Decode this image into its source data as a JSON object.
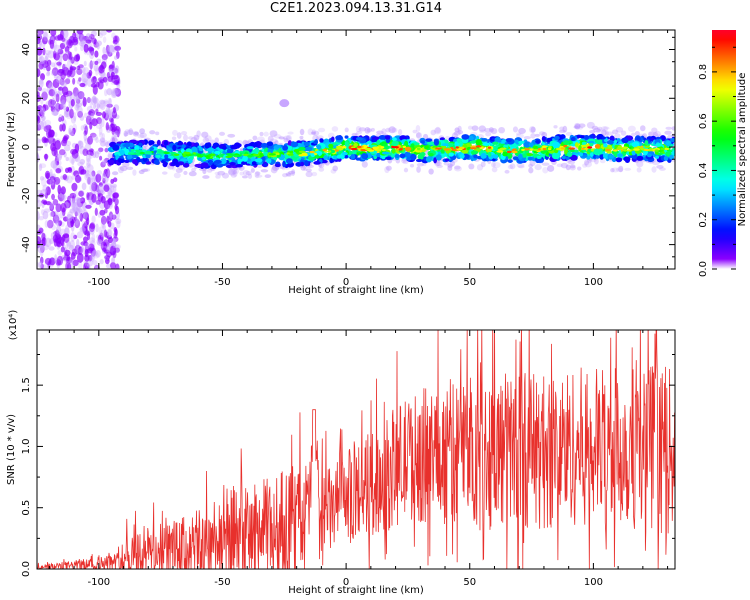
{
  "figure_title": "C2E1.2023.094.13.31.G14",
  "colors": {
    "snr_line": "#e8302c",
    "background_fill": "#ffffff",
    "colormap": [
      "#ffffff",
      "#7f00ff",
      "#0000ff",
      "#00ffff",
      "#00ff00",
      "#ffff00",
      "#ff7f00",
      "#ff0000",
      "#ff00aa"
    ]
  },
  "chart_data": [
    {
      "type": "heatmap",
      "title": "",
      "xlabel": "Height of straight line (km)",
      "ylabel": "Frequency (Hz)",
      "xlim": [
        -125,
        133
      ],
      "ylim": [
        -50,
        48
      ],
      "x_ticks": [
        -100,
        -50,
        0,
        50,
        100
      ],
      "x_tick_labels": [
        "-100",
        "-50",
        "0",
        "50",
        "100"
      ],
      "y_ticks": [
        -40,
        -20,
        0,
        20,
        40
      ],
      "y_tick_labels": [
        "-40",
        "-20",
        "0",
        "20",
        "40"
      ],
      "colorbar": {
        "label": "Normalized spectral amplitude",
        "range": [
          0,
          0.97
        ],
        "ticks": [
          0.0,
          0.2,
          0.4,
          0.6,
          0.8
        ],
        "tick_labels": [
          "0.0",
          "0.2",
          "0.4",
          "0.6",
          "0.8"
        ]
      },
      "ridge": {
        "x": [
          -95,
          -85,
          -75,
          -65,
          -55,
          -45,
          -35,
          -25,
          -15,
          -5,
          0,
          10,
          20,
          30,
          40,
          50,
          60,
          70,
          80,
          90,
          100,
          110,
          120,
          130
        ],
        "frequency": [
          -2,
          -2,
          -2.5,
          -3,
          -3.5,
          -3.5,
          -3,
          -3,
          -2.5,
          -1,
          0,
          -1,
          0,
          -1.5,
          -1,
          0,
          -1,
          -1.5,
          -1,
          0,
          0,
          -1,
          -0.5,
          -1
        ],
        "amplitude": [
          0.45,
          0.5,
          0.5,
          0.55,
          0.6,
          0.55,
          0.6,
          0.65,
          0.7,
          0.8,
          0.85,
          0.8,
          0.85,
          0.75,
          0.8,
          0.9,
          0.8,
          0.8,
          0.75,
          0.8,
          0.85,
          0.8,
          0.75,
          0.7
        ]
      },
      "noise_region": {
        "x_range": [
          -125,
          -95
        ],
        "frequency_range": [
          -50,
          48
        ],
        "amplitude": 0.2
      },
      "blobs": [
        {
          "x": -25,
          "frequency": 18,
          "amplitude": 0.2
        }
      ]
    },
    {
      "type": "line",
      "title": "",
      "xlabel": "Height of straight line (km)",
      "ylabel": "SNR (10 * v/v)",
      "y_scale_label": "(x10⁴)",
      "xlim": [
        -125,
        133
      ],
      "ylim": [
        0,
        1.95
      ],
      "x_ticks": [
        -100,
        -50,
        0,
        50,
        100
      ],
      "x_tick_labels": [
        "-100",
        "-50",
        "0",
        "50",
        "100"
      ],
      "y_ticks": [
        0.0,
        0.5,
        1.0,
        1.5
      ],
      "y_tick_labels": [
        "0.0",
        "0.5",
        "1.0",
        "1.5"
      ],
      "series": [
        {
          "x": [
            -125,
            -110,
            -100,
            -95,
            -90,
            -88,
            -80,
            -70,
            -60,
            -50,
            -40,
            -30,
            -20,
            -15,
            -13,
            -10,
            -5,
            0,
            5,
            10,
            15,
            20,
            25,
            30,
            40,
            50,
            60,
            70,
            80,
            90,
            100,
            110,
            120,
            125,
            130,
            133
          ],
          "y": [
            0.01,
            0.03,
            0.04,
            0.05,
            0.06,
            0.12,
            0.15,
            0.15,
            0.18,
            0.25,
            0.27,
            0.32,
            0.38,
            0.45,
            1.2,
            0.4,
            0.5,
            0.6,
            0.65,
            0.7,
            0.72,
            0.85,
            0.9,
            0.92,
            0.95,
            1.0,
            0.95,
            1.0,
            0.95,
            1.0,
            1.0,
            1.0,
            1.0,
            1.0,
            0.95,
            1.0
          ],
          "envelope": [
            0.02,
            0.04,
            0.06,
            0.07,
            0.1,
            0.2,
            0.2,
            0.25,
            0.3,
            0.45,
            0.4,
            0.45,
            0.5,
            0.45,
            0.1,
            0.4,
            0.35,
            0.35,
            0.4,
            0.45,
            0.45,
            0.5,
            0.5,
            0.55,
            0.6,
            0.6,
            0.65,
            0.65,
            0.65,
            0.65,
            0.65,
            0.65,
            0.7,
            0.7,
            0.7,
            0.6
          ]
        }
      ]
    }
  ]
}
